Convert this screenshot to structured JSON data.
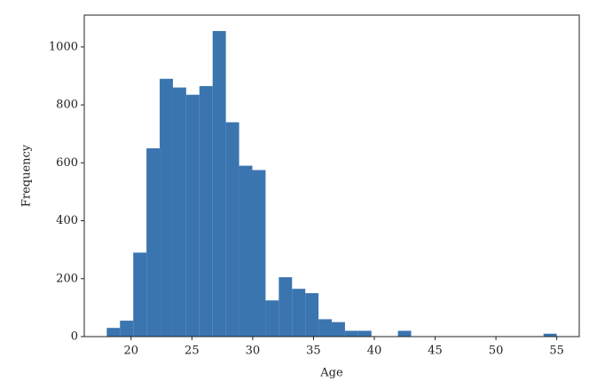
{
  "chart_data": {
    "type": "histogram",
    "x_label": "Age",
    "y_label": "Frequency",
    "color": "#3a75b0",
    "bins": [
      18,
      19.088,
      20.176,
      21.265,
      22.353,
      23.441,
      24.529,
      25.618,
      26.706,
      27.794,
      28.882,
      29.971,
      31.059,
      32.147,
      33.235,
      34.324,
      35.412,
      36.5,
      37.588,
      38.676,
      39.765,
      40.853,
      41.941,
      43.029,
      44.118,
      45.206,
      46.294,
      47.382,
      48.471,
      49.559,
      50.647,
      51.735,
      52.824,
      53.912,
      55
    ],
    "values": [
      30,
      55,
      290,
      650,
      890,
      860,
      835,
      865,
      1055,
      740,
      590,
      575,
      125,
      205,
      165,
      150,
      60,
      50,
      20,
      20,
      0,
      0,
      20,
      0,
      0,
      0,
      0,
      0,
      0,
      0,
      0,
      0,
      0,
      10
    ],
    "xlim": [
      16.15,
      56.85
    ],
    "ylim": [
      0,
      1110
    ],
    "xticks": [
      20,
      25,
      30,
      35,
      40,
      45,
      50,
      55
    ],
    "yticks": [
      0,
      200,
      400,
      600,
      800,
      1000
    ]
  }
}
